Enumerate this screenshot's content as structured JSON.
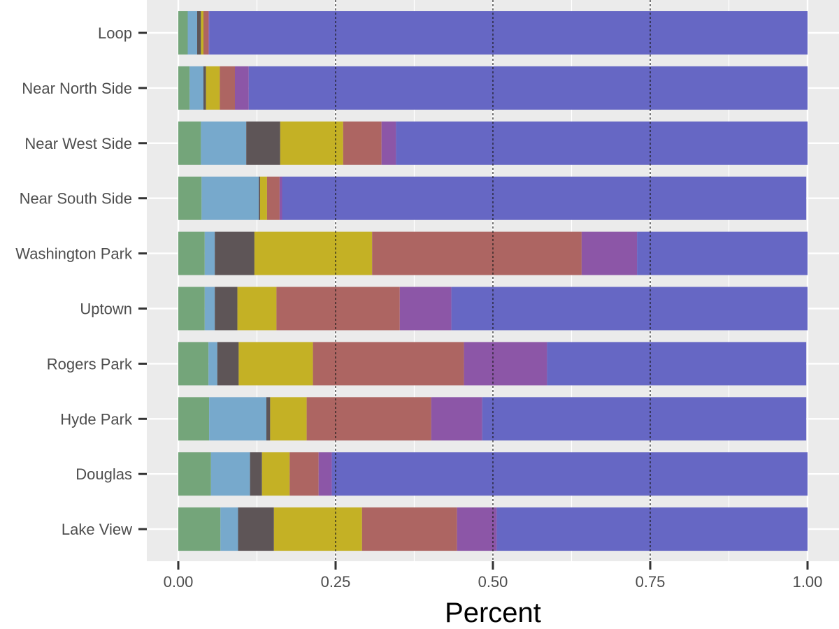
{
  "chart_data": {
    "type": "bar",
    "orientation": "horizontal",
    "stacked": true,
    "xlabel": "Percent",
    "ylabel": "",
    "xlim": [
      0,
      1
    ],
    "x_ticks": [
      "0.00",
      "0.25",
      "0.50",
      "0.75",
      "1.00"
    ],
    "reference_lines": [
      0.25,
      0.5,
      0.75
    ],
    "grid": true,
    "legend": "none",
    "categories": [
      "Loop",
      "Near North Side",
      "Near West Side",
      "Near South Side",
      "Washington Park",
      "Uptown",
      "Rogers Park",
      "Hyde Park",
      "Douglas",
      "Lake View"
    ],
    "series": [
      {
        "color": "#74a57a",
        "values": [
          0.015,
          0.018,
          0.036,
          0.037,
          0.042,
          0.042,
          0.048,
          0.049,
          0.052,
          0.067
        ]
      },
      {
        "color": "#77a9cc",
        "values": [
          0.015,
          0.022,
          0.072,
          0.091,
          0.016,
          0.016,
          0.014,
          0.091,
          0.062,
          0.028
        ]
      },
      {
        "color": "#5e5557",
        "values": [
          0.006,
          0.004,
          0.054,
          0.002,
          0.063,
          0.036,
          0.034,
          0.006,
          0.019,
          0.057
        ]
      },
      {
        "color": "#c4b125",
        "values": [
          0.004,
          0.022,
          0.1,
          0.011,
          0.187,
          0.062,
          0.118,
          0.058,
          0.044,
          0.14
        ]
      },
      {
        "color": "#ad6562",
        "values": [
          0.008,
          0.024,
          0.061,
          0.02,
          0.333,
          0.196,
          0.24,
          0.198,
          0.046,
          0.151
        ]
      },
      {
        "color": "#8c56a7",
        "values": [
          0.001,
          0.022,
          0.023,
          0.004,
          0.088,
          0.082,
          0.132,
          0.081,
          0.021,
          0.063
        ]
      },
      {
        "color": "#6667c4",
        "values": [
          0.951,
          0.888,
          0.654,
          0.833,
          0.271,
          0.566,
          0.412,
          0.515,
          0.756,
          0.494
        ]
      }
    ]
  }
}
